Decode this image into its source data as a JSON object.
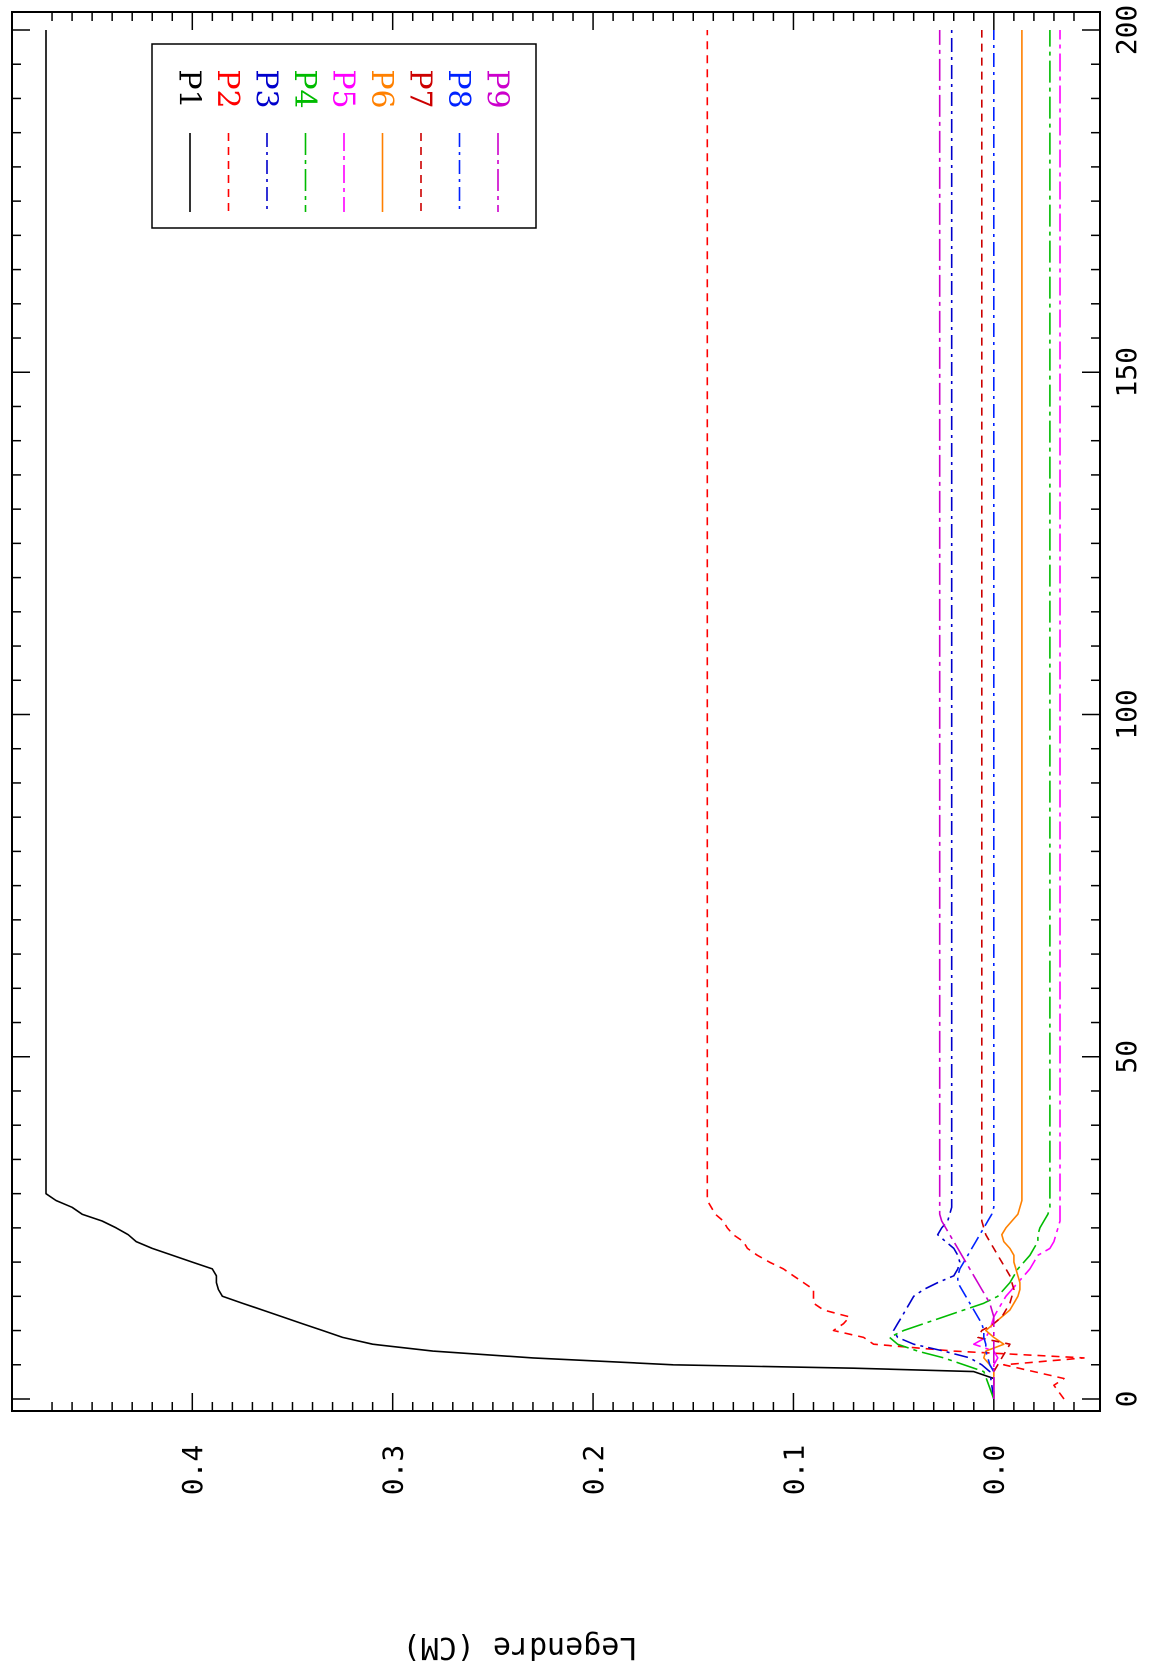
{
  "chart_data": {
    "type": "line",
    "title": "",
    "xlabel": "",
    "ylabel": "Legendre (CM)",
    "xlim": [
      0,
      200
    ],
    "ylim": [
      -0.045,
      0.48
    ],
    "x_ticks": [
      "0",
      "50",
      "100",
      "150",
      "200"
    ],
    "y_ticks": [
      "0.0",
      "0.1",
      "0.2",
      "0.3",
      "0.4"
    ],
    "orientation": "rotated-90-clockwise",
    "legend_position": "top-right",
    "grid": false,
    "series": [
      {
        "name": "P1",
        "color": "#000000",
        "dash": "",
        "x": [
          2,
          3,
          4,
          4.5,
          5,
          6,
          7,
          8,
          9,
          10,
          11,
          12,
          13,
          14,
          15,
          16,
          17,
          18,
          19,
          20,
          21,
          22,
          23,
          24,
          25,
          26,
          27,
          28,
          29,
          30,
          200
        ],
        "y": [
          0.0,
          0.0,
          0.01,
          0.07,
          0.16,
          0.23,
          0.28,
          0.31,
          0.325,
          0.335,
          0.345,
          0.355,
          0.365,
          0.375,
          0.385,
          0.387,
          0.388,
          0.388,
          0.39,
          0.4,
          0.41,
          0.42,
          0.428,
          0.432,
          0.438,
          0.445,
          0.455,
          0.46,
          0.468,
          0.473,
          0.473
        ]
      },
      {
        "name": "P2",
        "color": "#ff0000",
        "dash": "8,6",
        "x": [
          0,
          2,
          3,
          4,
          5,
          6,
          7,
          8,
          9,
          10,
          11,
          12,
          13,
          14,
          15,
          16,
          17,
          18,
          19,
          20,
          21,
          22,
          23,
          24,
          25,
          26,
          27,
          28,
          29,
          30,
          200
        ],
        "y": [
          -0.035,
          -0.03,
          -0.035,
          -0.02,
          -0.005,
          -0.045,
          0.02,
          0.06,
          0.065,
          0.08,
          0.075,
          0.072,
          0.085,
          0.09,
          0.09,
          0.09,
          0.095,
          0.1,
          0.105,
          0.112,
          0.118,
          0.123,
          0.125,
          0.13,
          0.133,
          0.135,
          0.139,
          0.141,
          0.143,
          0.143,
          0.143
        ]
      },
      {
        "name": "P3",
        "color": "#0000cc",
        "dash": "14,5,3,5",
        "x": [
          0,
          4,
          5,
          6,
          7,
          8,
          9,
          10,
          11,
          12,
          13,
          14,
          15,
          16,
          17,
          18,
          19,
          20,
          21,
          22,
          23,
          24,
          25,
          26,
          27,
          28,
          29,
          30,
          200
        ],
        "y": [
          0.0,
          0.002,
          0.006,
          0.012,
          0.025,
          0.04,
          0.048,
          0.05,
          0.048,
          0.046,
          0.044,
          0.042,
          0.04,
          0.035,
          0.028,
          0.02,
          0.018,
          0.017,
          0.018,
          0.02,
          0.024,
          0.028,
          0.026,
          0.023,
          0.022,
          0.021,
          0.021,
          0.021,
          0.021
        ]
      },
      {
        "name": "P4",
        "color": "#00bb00",
        "dash": "22,5,4,5",
        "x": [
          0,
          4,
          5,
          6,
          7,
          8,
          9,
          10,
          11,
          12,
          13,
          14,
          15,
          16,
          17,
          18,
          19,
          20,
          21,
          22,
          23,
          24,
          25,
          26,
          27,
          28,
          29,
          30,
          200
        ],
        "y": [
          0.0,
          0.005,
          0.015,
          0.025,
          0.038,
          0.048,
          0.052,
          0.045,
          0.035,
          0.025,
          0.015,
          0.005,
          -0.002,
          -0.005,
          -0.008,
          -0.01,
          -0.012,
          -0.015,
          -0.018,
          -0.02,
          -0.022,
          -0.022,
          -0.023,
          -0.025,
          -0.027,
          -0.028,
          -0.028,
          -0.028,
          -0.028
        ]
      },
      {
        "name": "P5",
        "color": "#ff00ff",
        "dash": "18,5,4,5",
        "x": [
          0,
          4,
          5,
          6,
          7,
          8,
          9,
          10,
          11,
          12,
          13,
          14,
          15,
          16,
          17,
          18,
          19,
          20,
          21,
          22,
          23,
          24,
          25,
          26,
          27,
          28,
          29,
          30,
          200
        ],
        "y": [
          0.0,
          0.0,
          0.0,
          -0.002,
          0.0,
          0.01,
          0.004,
          0.002,
          0.001,
          0.0,
          -0.002,
          -0.004,
          -0.006,
          -0.009,
          -0.012,
          -0.015,
          -0.018,
          -0.02,
          -0.022,
          -0.028,
          -0.03,
          -0.031,
          -0.032,
          -0.033,
          -0.033,
          -0.033,
          -0.033,
          -0.033,
          -0.033
        ]
      },
      {
        "name": "P6",
        "color": "#ff8000",
        "dash": "",
        "x": [
          0,
          4,
          5,
          6,
          7,
          8,
          9,
          10,
          11,
          12,
          13,
          14,
          15,
          16,
          17,
          18,
          19,
          20,
          21,
          22,
          23,
          24,
          25,
          26,
          27,
          28,
          29,
          30,
          200
        ],
        "y": [
          0.0,
          0.0,
          0.002,
          0.005,
          0.004,
          -0.005,
          0.0,
          0.004,
          0.0,
          -0.004,
          -0.008,
          -0.01,
          -0.012,
          -0.013,
          -0.013,
          -0.012,
          -0.011,
          -0.01,
          -0.01,
          -0.008,
          -0.005,
          -0.004,
          -0.006,
          -0.009,
          -0.012,
          -0.013,
          -0.014,
          -0.014,
          -0.014
        ]
      },
      {
        "name": "P7",
        "color": "#cc0000",
        "dash": "8,6",
        "x": [
          0,
          4,
          5,
          6,
          7,
          8,
          9,
          10,
          11,
          12,
          13,
          14,
          15,
          16,
          17,
          18,
          19,
          20,
          21,
          22,
          23,
          24,
          25,
          26,
          27,
          28,
          29,
          30,
          200
        ],
        "y": [
          0.0,
          0.0,
          -0.002,
          -0.004,
          -0.006,
          -0.008,
          0.008,
          0.006,
          0.0,
          -0.004,
          -0.006,
          -0.008,
          -0.009,
          -0.01,
          -0.009,
          -0.008,
          -0.006,
          -0.004,
          -0.002,
          0.0,
          0.002,
          0.004,
          0.005,
          0.006,
          0.006,
          0.006,
          0.006,
          0.006,
          0.006
        ]
      },
      {
        "name": "P8",
        "color": "#0022ff",
        "dash": "14,5,3,5",
        "x": [
          0,
          4,
          5,
          6,
          7,
          8,
          9,
          10,
          11,
          12,
          13,
          14,
          15,
          16,
          17,
          18,
          19,
          20,
          21,
          22,
          23,
          24,
          25,
          26,
          27,
          28,
          29,
          30,
          200
        ],
        "y": [
          0.0,
          0.0,
          0.002,
          0.003,
          0.004,
          0.004,
          0.005,
          0.005,
          0.006,
          0.008,
          0.01,
          0.012,
          0.014,
          0.016,
          0.018,
          0.018,
          0.017,
          0.015,
          0.013,
          0.011,
          0.009,
          0.007,
          0.005,
          0.003,
          0.001,
          0.0,
          0.0,
          0.0,
          0.0
        ]
      },
      {
        "name": "P9",
        "color": "#cc00cc",
        "dash": "22,5,4,5",
        "x": [
          0,
          4,
          5,
          6,
          7,
          8,
          9,
          10,
          11,
          12,
          13,
          14,
          15,
          16,
          17,
          18,
          19,
          20,
          21,
          22,
          23,
          24,
          25,
          26,
          27,
          28,
          29,
          30,
          200
        ],
        "y": [
          0.0,
          0.0,
          0.0,
          0.0,
          0.0,
          0.0,
          0.0,
          0.0,
          0.0,
          0.0,
          0.001,
          0.002,
          0.004,
          0.006,
          0.008,
          0.01,
          0.012,
          0.014,
          0.016,
          0.018,
          0.02,
          0.022,
          0.024,
          0.026,
          0.027,
          0.027,
          0.027,
          0.027,
          0.027
        ]
      }
    ]
  }
}
